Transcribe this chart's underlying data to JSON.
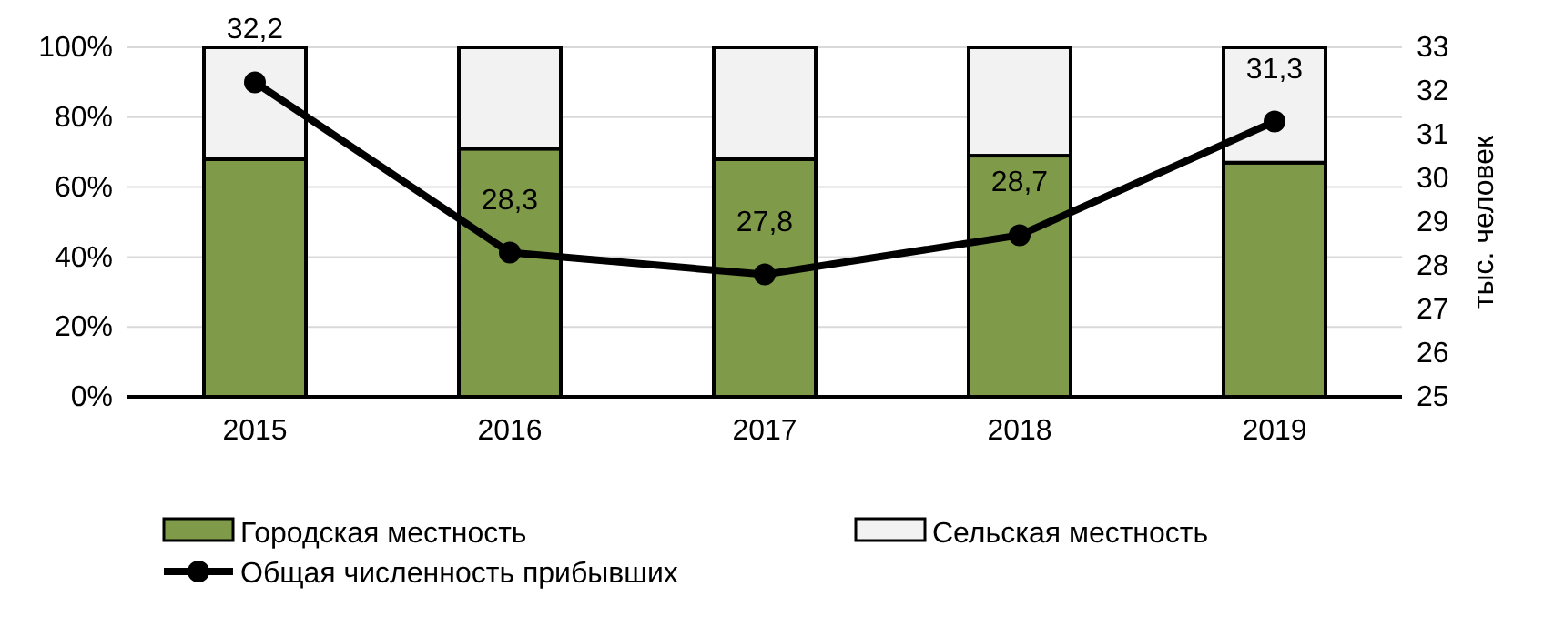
{
  "chart_data": {
    "type": "bar",
    "stacked": true,
    "categories": [
      "2015",
      "2016",
      "2017",
      "2018",
      "2019"
    ],
    "series": [
      {
        "name": "Городская местность",
        "color": "#7f9a48",
        "values": [
          68,
          71,
          68,
          69,
          67
        ]
      },
      {
        "name": "Сельская местность",
        "color": "#f2f2f2",
        "values": [
          32,
          29,
          32,
          31,
          33
        ]
      },
      {
        "name": "Общая  численность прибывших",
        "type": "line",
        "axis": "y2",
        "color": "#000000",
        "values": [
          32.2,
          28.3,
          27.8,
          28.7,
          31.3
        ],
        "value_labels": [
          "32,2",
          "28,3",
          "27,8",
          "28,7",
          "31,3"
        ]
      }
    ],
    "ylim": [
      0,
      100
    ],
    "yticks": [
      {
        "value": 0,
        "label": "0%"
      },
      {
        "value": 20,
        "label": "20%"
      },
      {
        "value": 40,
        "label": "40%"
      },
      {
        "value": 60,
        "label": "60%"
      },
      {
        "value": 80,
        "label": "80%"
      },
      {
        "value": 100,
        "label": "100%"
      }
    ],
    "y2lim": [
      25,
      33
    ],
    "y2ticks": [
      25,
      26,
      27,
      28,
      29,
      30,
      31,
      32,
      33
    ],
    "y2label": "тыс. человек",
    "grid": "y",
    "legend": "bottom",
    "marker": "circle"
  }
}
